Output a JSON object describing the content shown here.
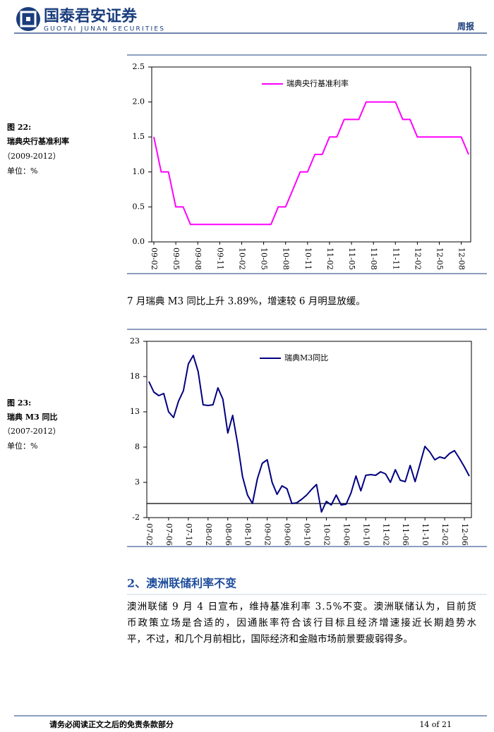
{
  "header": {
    "logo_cn": "国泰君安证券",
    "logo_en": "GUOTAI JUNAN SECURITIES",
    "tag": "周报"
  },
  "figures": [
    {
      "number": "图 22:",
      "title": "瑞典央行基准利率",
      "period": "（2009-2012）",
      "unit": "单位：%"
    },
    {
      "number": "图 23:",
      "title": "瑞典 M3 同比",
      "period": "（2007-2012）",
      "unit": "单位：%"
    }
  ],
  "chart_data": [
    {
      "type": "line",
      "legend": "top",
      "categories": [
        "09-02",
        null,
        null,
        "09-05",
        null,
        null,
        "09-08",
        null,
        null,
        "09-11",
        null,
        null,
        "10-02",
        null,
        null,
        "10-05",
        null,
        null,
        "10-08",
        null,
        null,
        "10-11",
        null,
        null,
        "11-02",
        null,
        null,
        "11-05",
        null,
        null,
        "11-08",
        null,
        null,
        "11-11",
        null,
        null,
        "12-02",
        null,
        null,
        "12-05",
        null,
        null,
        "12-08",
        null
      ],
      "series": [
        {
          "name": "瑞典央行基准利率",
          "color": "#ff00ff",
          "values": [
            1.5,
            1.0,
            1.0,
            0.5,
            0.5,
            0.25,
            0.25,
            0.25,
            0.25,
            0.25,
            0.25,
            0.25,
            0.25,
            0.25,
            0.25,
            0.25,
            0.25,
            0.5,
            0.5,
            0.75,
            1.0,
            1.0,
            1.25,
            1.25,
            1.5,
            1.5,
            1.75,
            1.75,
            1.75,
            2.0,
            2.0,
            2.0,
            2.0,
            2.0,
            1.75,
            1.75,
            1.5,
            1.5,
            1.5,
            1.5,
            1.5,
            1.5,
            1.5,
            1.25
          ]
        }
      ],
      "ylim": [
        0,
        2.5
      ],
      "yticks": [
        {
          "value": 0,
          "label": "0.0"
        },
        0.5,
        {
          "value": 1,
          "label": "1.0"
        },
        1.5,
        {
          "value": 2,
          "label": "2.0"
        },
        2.5
      ]
    },
    {
      "type": "line",
      "legend": "top",
      "categories": [
        "07-02",
        null,
        null,
        null,
        "07-06",
        null,
        null,
        null,
        "07-10",
        null,
        null,
        null,
        "08-02",
        null,
        null,
        null,
        "08-06",
        null,
        null,
        null,
        "08-10",
        null,
        null,
        null,
        "09-02",
        null,
        null,
        null,
        "09-06",
        null,
        null,
        null,
        "09-10",
        null,
        null,
        null,
        "10-02",
        null,
        null,
        null,
        "10-06",
        null,
        null,
        null,
        "10-10",
        null,
        null,
        null,
        "11-02",
        null,
        null,
        null,
        "11-06",
        null,
        null,
        null,
        "11-10",
        null,
        null,
        null,
        "12-02",
        null,
        null,
        null,
        "12-06",
        null
      ],
      "series": [
        {
          "name": "瑞典M3同比",
          "color": "#000080",
          "values": [
            17.3,
            15.8,
            15.3,
            15.6,
            13.0,
            12.2,
            14.5,
            16.0,
            19.8,
            21.0,
            18.7,
            14.0,
            13.9,
            14.0,
            16.4,
            14.8,
            10.0,
            12.5,
            8.5,
            3.8,
            1.2,
            0.0,
            3.5,
            5.7,
            6.2,
            3.0,
            1.3,
            2.5,
            2.1,
            0.0,
            0.1,
            0.6,
            1.2,
            2.0,
            2.7,
            -1.2,
            0.3,
            -0.2,
            1.2,
            -0.2,
            -0.1,
            1.5,
            3.9,
            1.8,
            4.0,
            4.1,
            4.0,
            4.5,
            4.2,
            3.0,
            4.8,
            3.3,
            3.1,
            5.4,
            3.1,
            5.6,
            8.1,
            7.3,
            6.2,
            6.6,
            6.4,
            7.1,
            7.5,
            6.4,
            5.2,
            3.89
          ]
        }
      ],
      "ylim": [
        -2,
        23
      ],
      "yticks": [
        -2,
        3,
        8,
        13,
        18,
        23
      ]
    }
  ],
  "note": "7 月瑞典 M3 同比上升 3.89%，增速较 6 月明显放缓。",
  "section": {
    "heading": "2、澳洲联储利率不变",
    "lines": [
      "澳洲联储 9 月 4 日宣布，维持基准利率 3.5%不变。澳洲联储认为，目前货",
      "币政策立场是合适的，因通胀率符合该行目标且经济增速接近长期趋势水",
      "平，不过，和几个月前相比，国际经济和金融市场前景要疲弱得多。"
    ]
  },
  "footer": {
    "disclaimer": "请务必阅读正文之后的免责条款部分",
    "page": "14 of 21"
  }
}
